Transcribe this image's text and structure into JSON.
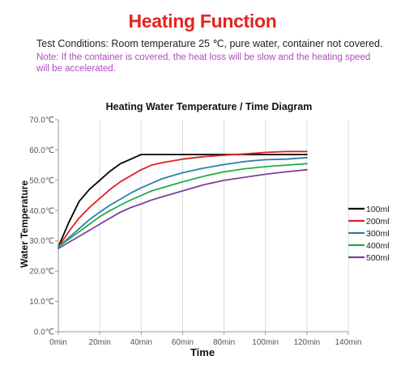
{
  "header": {
    "title": "Heating Function",
    "conditions": "Test Conditions: Room temperature 25 ℃, pure water, container not covered.",
    "note": "Note: If the container is covered, the heat loss will be slow and the heating speed will be accelerated."
  },
  "chart_data": {
    "type": "line",
    "title": "Heating Water Temperature / Time Diagram",
    "xlabel": "Time",
    "ylabel": "Water Temperature",
    "x_ticks": [
      0,
      20,
      40,
      60,
      80,
      100,
      120,
      140
    ],
    "x_tick_labels": [
      "0min",
      "20min",
      "40min",
      "60min",
      "80min",
      "100min",
      "120min",
      "140min"
    ],
    "y_ticks": [
      0,
      10,
      20,
      30,
      40,
      50,
      60,
      70
    ],
    "y_tick_labels": [
      "0.0℃",
      "10.0℃",
      "20.0℃",
      "30.0℃",
      "40.0℃",
      "50.0℃",
      "60.0℃",
      "70.0℃"
    ],
    "xlim": [
      0,
      140
    ],
    "ylim": [
      0,
      70
    ],
    "grid": "vertical",
    "legend": "right",
    "series": [
      {
        "name": "100ml",
        "color": "#000000",
        "x": [
          0,
          5,
          10,
          15,
          20,
          25,
          30,
          35,
          40,
          45,
          50,
          60,
          70,
          80,
          90,
          100,
          110,
          120
        ],
        "y": [
          28,
          36,
          43,
          47,
          50,
          53,
          55.5,
          57,
          58.5,
          58.5,
          58.5,
          58.5,
          58.5,
          58.5,
          58.5,
          58.5,
          58.5,
          58.5
        ]
      },
      {
        "name": "200ml",
        "color": "#e02020",
        "x": [
          0,
          5,
          10,
          15,
          20,
          25,
          30,
          35,
          40,
          45,
          50,
          60,
          70,
          80,
          90,
          100,
          110,
          120
        ],
        "y": [
          28,
          33,
          37.5,
          41,
          44,
          47,
          49.5,
          51.5,
          53.5,
          55,
          55.8,
          57,
          57.8,
          58.3,
          58.7,
          59.2,
          59.5,
          59.5
        ]
      },
      {
        "name": "300ml",
        "color": "#2b7fa8",
        "x": [
          0,
          5,
          10,
          15,
          20,
          25,
          30,
          35,
          40,
          45,
          50,
          60,
          70,
          80,
          90,
          100,
          110,
          120
        ],
        "y": [
          28,
          31,
          34,
          37,
          39.5,
          41.8,
          43.8,
          45.8,
          47.5,
          49,
          50.5,
          52.5,
          54,
          55.2,
          56.2,
          56.8,
          57,
          57.5
        ]
      },
      {
        "name": "400ml",
        "color": "#1fae4a",
        "x": [
          0,
          5,
          10,
          15,
          20,
          25,
          30,
          35,
          40,
          45,
          50,
          60,
          70,
          80,
          90,
          100,
          110,
          120
        ],
        "y": [
          28,
          30.5,
          33,
          35.5,
          38,
          40,
          41.8,
          43.5,
          45,
          46.5,
          47.5,
          49.5,
          51.3,
          52.8,
          53.8,
          54.5,
          55,
          55.5
        ]
      },
      {
        "name": "500ml",
        "color": "#7b3fa0",
        "x": [
          0,
          5,
          10,
          15,
          20,
          25,
          30,
          35,
          40,
          45,
          50,
          60,
          70,
          80,
          90,
          100,
          110,
          120
        ],
        "y": [
          27.5,
          29.5,
          31.5,
          33.5,
          35.5,
          37.5,
          39.5,
          41,
          42.2,
          43.5,
          44.5,
          46.5,
          48.5,
          50,
          51,
          52,
          52.8,
          53.5
        ]
      }
    ]
  }
}
